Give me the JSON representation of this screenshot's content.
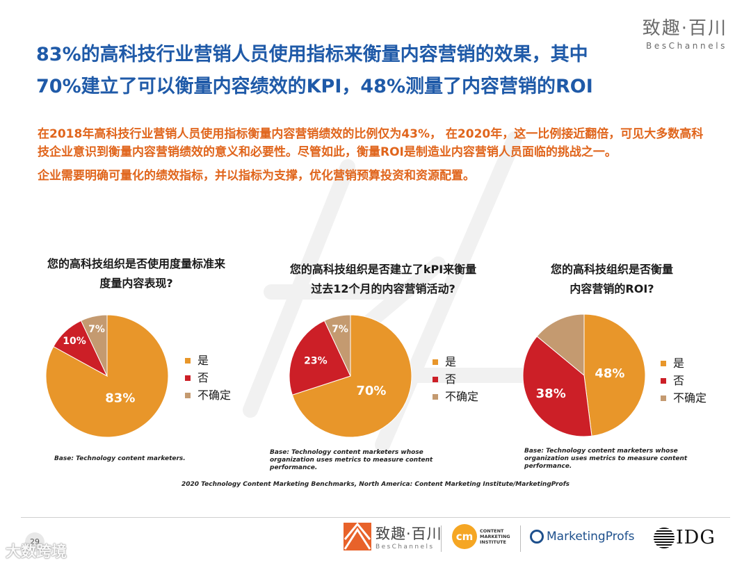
{
  "brand": {
    "cn": "致趣·百川",
    "en": "BesChannels"
  },
  "title": {
    "line1": "83%的高科技行业营销人员使用指标来衡量内容营销的效果，其中",
    "line2": "70%建立了可以衡量内容绩效的KPI，48%测量了内容营销的ROI"
  },
  "body": {
    "p1": "在2018年高科技行业营销人员使用指标衡量内容营销绩效的比例仅为43%， 在2020年，这一比例接近翻倍，可见大多数高科技企业意识到衡量内容营销绩效的意义和必要性。尽管如此，衡量ROI是制造业内容营销人员面临的挑战之一。",
    "p2": "企业需要明确可量化的绩效指标，并以指标为支撑，优化营销预算投资和资源配置。"
  },
  "legend_labels": [
    "是",
    "否",
    "不确定"
  ],
  "colors": {
    "yes": "#e8962a",
    "no": "#cc1f27",
    "unsure": "#c49a70",
    "title": "#1f5aa8",
    "body": "#e0651c"
  },
  "chart_data": [
    {
      "type": "pie",
      "title": "您的高科技组织是否使用度量标准来度量内容表现?",
      "title_lines": [
        "您的高科技组织是否使用度量标准来",
        "度量内容表现?"
      ],
      "labels": [
        "是",
        "否",
        "不确定"
      ],
      "values": [
        83,
        10,
        7
      ],
      "value_labels": [
        "83%",
        "10%",
        "7%"
      ],
      "base": [
        "Base: Technology content marketers."
      ]
    },
    {
      "type": "pie",
      "title": "您的高科技组织是否建立了kPI来衡量过去12个月的内容营销活动?",
      "title_lines": [
        "您的高科技组织是否建立了kPI来衡量",
        "过去12个月的内容营销活动?"
      ],
      "labels": [
        "是",
        "否",
        "不确定"
      ],
      "values": [
        70,
        23,
        7
      ],
      "value_labels": [
        "70%",
        "23%",
        "7%"
      ],
      "base": [
        "Base: Technology content marketers whose",
        "organization uses metrics to measure content",
        "performance."
      ]
    },
    {
      "type": "pie",
      "title": "您的高科技组织是否衡量内容营销的ROI?",
      "title_lines": [
        "您的高科技组织是否衡量",
        "内容营销的ROI?"
      ],
      "labels": [
        "是",
        "否",
        "不确定"
      ],
      "values": [
        48,
        38,
        14
      ],
      "value_labels": [
        "48%",
        "38%",
        ""
      ],
      "base": [
        "Base: Technology content marketers whose",
        "organization uses metrics to measure content",
        "performance."
      ]
    }
  ],
  "source": "2020 Technology Content Marketing Benchmarks, North America: Content Marketing Institute/MarketingProfs",
  "footer": {
    "page_number": "29",
    "watermark_text": "大数跨境",
    "logo1_cn": "致趣·百川",
    "logo1_en": "BesChannels",
    "logo2_mark": "cm",
    "logo2_lines": [
      "CONTENT",
      "MARKETING",
      "INSTITUTE"
    ],
    "logo3_text": "MarketingProfs",
    "logo4_text": "IDG"
  }
}
